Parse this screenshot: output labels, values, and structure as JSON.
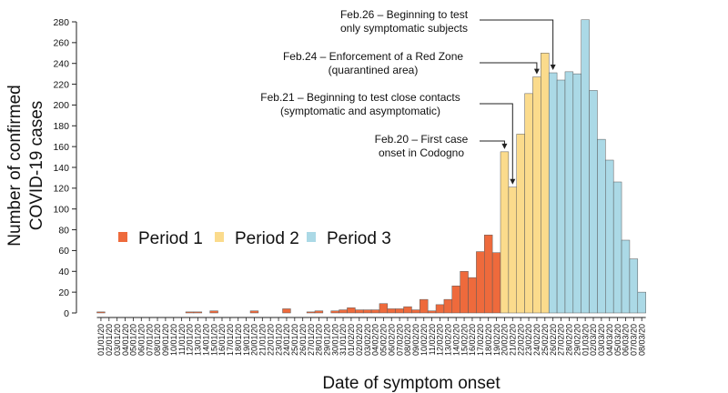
{
  "chart_data": {
    "type": "bar",
    "title": "",
    "xlabel": "Date of symptom onset",
    "ylabel": [
      "Number of confirmed",
      "COVID-19 cases"
    ],
    "ylim": [
      0,
      280
    ],
    "yticks": [
      0,
      20,
      40,
      60,
      80,
      100,
      120,
      140,
      160,
      180,
      200,
      220,
      240,
      260,
      280
    ],
    "grid": false,
    "legend_position": "center-left",
    "periods": [
      {
        "name": "Period 1",
        "color": "#EE6A3C"
      },
      {
        "name": "Period 2",
        "color": "#FBDB8C"
      },
      {
        "name": "Period 3",
        "color": "#ABD9E6"
      }
    ],
    "categories": [
      "01/01/20",
      "02/01/20",
      "03/01/20",
      "04/01/20",
      "05/01/20",
      "06/01/20",
      "07/01/20",
      "08/01/20",
      "09/01/20",
      "10/01/20",
      "11/01/20",
      "12/01/20",
      "13/01/20",
      "14/01/20",
      "15/01/20",
      "16/01/20",
      "17/01/20",
      "18/01/20",
      "19/01/20",
      "20/01/20",
      "21/01/20",
      "22/01/20",
      "23/01/20",
      "24/01/20",
      "25/01/20",
      "26/01/20",
      "27/01/20",
      "28/01/20",
      "29/01/20",
      "30/01/20",
      "31/01/20",
      "01/02/20",
      "02/02/20",
      "03/02/20",
      "04/02/20",
      "05/02/20",
      "06/02/20",
      "07/02/20",
      "08/02/20",
      "09/02/20",
      "10/02/20",
      "11/02/20",
      "12/02/20",
      "13/02/20",
      "14/02/20",
      "15/02/20",
      "16/02/20",
      "17/02/20",
      "18/02/20",
      "19/02/20",
      "20/02/20",
      "21/02/20",
      "22/02/20",
      "23/02/20",
      "24/02/20",
      "25/02/20",
      "26/02/20",
      "27/02/20",
      "28/02/20",
      "29/02/20",
      "01/03/20",
      "02/03/20",
      "03/03/20",
      "04/03/20",
      "05/03/20",
      "06/03/20",
      "07/03/20",
      "08/03/20"
    ],
    "values": [
      1,
      0,
      0,
      0,
      0,
      0,
      0,
      0,
      0,
      0,
      0,
      1,
      1,
      0,
      2,
      0,
      0,
      0,
      0,
      2,
      0,
      0,
      0,
      4,
      0,
      0,
      1,
      2,
      0,
      2,
      3,
      5,
      3,
      3,
      3,
      9,
      4,
      4,
      6,
      3,
      13,
      2,
      8,
      13,
      26,
      40,
      34,
      59,
      75,
      58,
      155,
      121,
      172,
      211,
      227,
      250,
      231,
      224,
      232,
      230,
      282,
      214,
      167,
      147,
      126,
      70,
      52,
      20
    ],
    "period": [
      1,
      1,
      1,
      1,
      1,
      1,
      1,
      1,
      1,
      1,
      1,
      1,
      1,
      1,
      1,
      1,
      1,
      1,
      1,
      1,
      1,
      1,
      1,
      1,
      1,
      1,
      1,
      1,
      1,
      1,
      1,
      1,
      1,
      1,
      1,
      1,
      1,
      1,
      1,
      1,
      1,
      1,
      1,
      1,
      1,
      1,
      1,
      1,
      1,
      1,
      2,
      2,
      2,
      2,
      2,
      2,
      3,
      3,
      3,
      3,
      3,
      3,
      3,
      3,
      3,
      3,
      3,
      3
    ],
    "annotations": [
      {
        "lines": [
          "Feb.26 – Beginning to test",
          "only symptomatic subjects"
        ],
        "date": "26/02/20"
      },
      {
        "lines": [
          "Feb.24 – Enforcement of a Red Zone",
          "(quarantined area)"
        ],
        "date": "24/02/20"
      },
      {
        "lines": [
          "Feb.21 – Beginning to test close contacts",
          "(symptomatic and asymptomatic)"
        ],
        "date": "21/02/20"
      },
      {
        "lines": [
          "Feb.20 – First case",
          "onset in Codogno"
        ],
        "date": "20/02/20"
      }
    ]
  }
}
